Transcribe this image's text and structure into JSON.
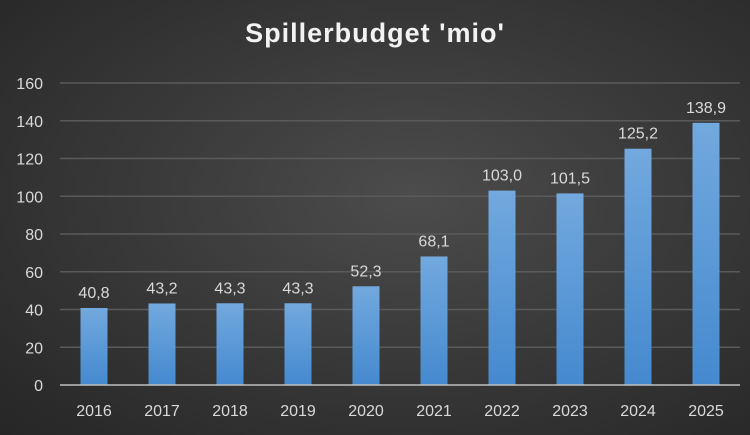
{
  "chart_data": {
    "type": "bar",
    "title": "Spillerbudget 'mio'",
    "categories": [
      "2016",
      "2017",
      "2018",
      "2019",
      "2020",
      "2021",
      "2022",
      "2023",
      "2024",
      "2025"
    ],
    "values": [
      40.8,
      43.2,
      43.3,
      43.3,
      52.3,
      68.1,
      103.0,
      101.5,
      125.2,
      138.9
    ],
    "data_labels": [
      "40,8",
      "43,2",
      "43,3",
      "43,3",
      "52,3",
      "68,1",
      "103,0",
      "101,5",
      "125,2",
      "138,9"
    ],
    "ylim": [
      0,
      160
    ],
    "yticks": [
      "0",
      "20",
      "40",
      "60",
      "80",
      "100",
      "120",
      "140",
      "160"
    ],
    "grid": true,
    "bar_color": "#5b9bd5"
  }
}
